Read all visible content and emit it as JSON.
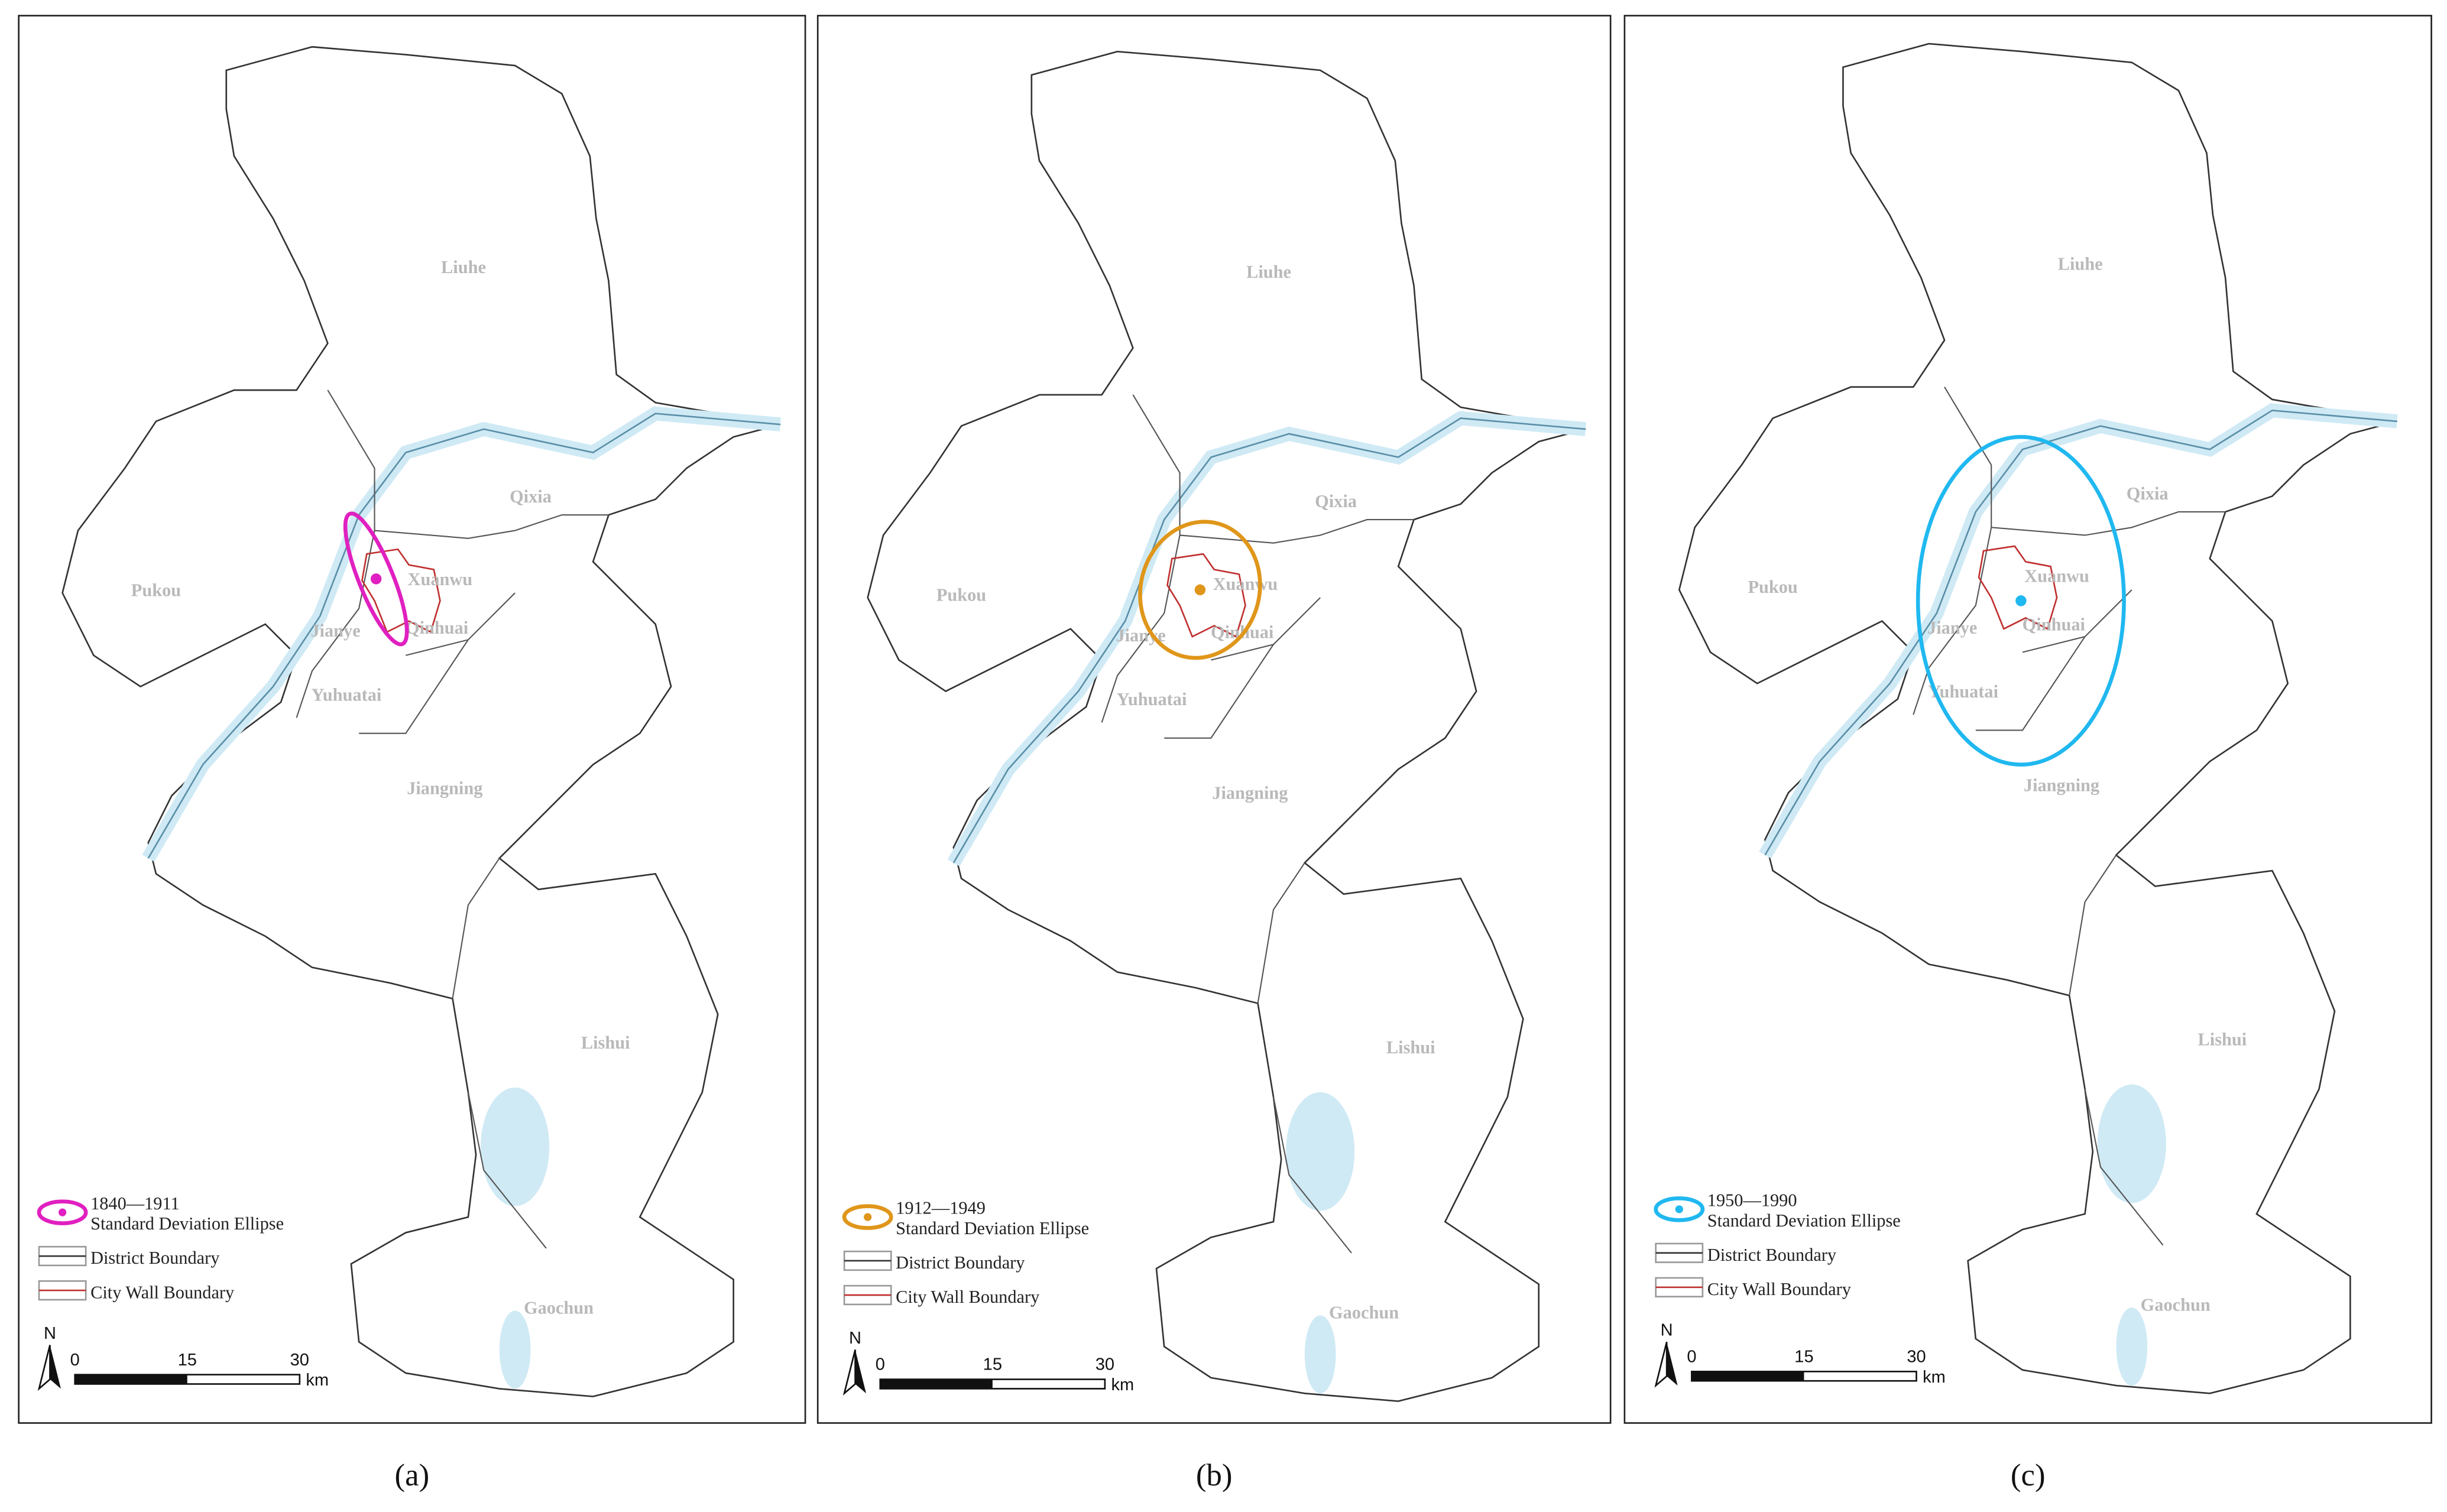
{
  "panels": [
    {
      "caption": "(a)",
      "ellipse_color": "#e020c0",
      "districts": [
        "Liuhe",
        "Qixia",
        "Pukou",
        "Xuanwu",
        "Jianye",
        "Qinhuai",
        "Yuhuatai",
        "Jiangning",
        "Lishui",
        "Gaochun"
      ],
      "legend": {
        "period": "1840—1911",
        "ellipse": "Standard Deviation Ellipse",
        "district": "District Boundary",
        "wall": "City Wall Boundary"
      },
      "scale": {
        "north": "N",
        "ticks": [
          0,
          15,
          30
        ],
        "unit": "km"
      }
    },
    {
      "caption": "(b)",
      "ellipse_color": "#e0961a",
      "districts": [
        "Liuhe",
        "Qixia",
        "Pukou",
        "Xuanwu",
        "Jianye",
        "Qinhuai",
        "Yuhuatai",
        "Jiangning",
        "Lishui",
        "Gaochun"
      ],
      "legend": {
        "period": "1912—1949",
        "ellipse": "Standard Deviation Ellipse",
        "district": "District Boundary",
        "wall": "City Wall Boundary"
      },
      "scale": {
        "north": "N",
        "ticks": [
          0,
          15,
          30
        ],
        "unit": "km"
      }
    },
    {
      "caption": "(c)",
      "ellipse_color": "#20b8f0",
      "districts": [
        "Liuhe",
        "Qixia",
        "Pukou",
        "Xuanwu",
        "Jianye",
        "Qinhuai",
        "Yuhuatai",
        "Jiangning",
        "Lishui",
        "Gaochun"
      ],
      "legend": {
        "period": "1950—1990",
        "ellipse": "Standard Deviation Ellipse",
        "district": "District Boundary",
        "wall": "City Wall Boundary"
      },
      "scale": {
        "north": "N",
        "ticks": [
          0,
          15,
          30
        ],
        "unit": "km"
      }
    }
  ]
}
